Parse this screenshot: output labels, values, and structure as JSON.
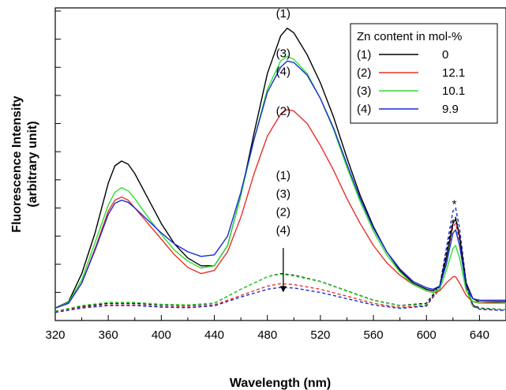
{
  "chart_data": {
    "type": "line",
    "xlabel": "Wavelength (nm)",
    "ylabel_line1": "Fluorescence Intensity",
    "ylabel_line2": "(arbitrary unit)",
    "xlim": [
      320,
      660
    ],
    "ylim": [
      0,
      1
    ],
    "x_ticks": [
      320,
      360,
      400,
      440,
      480,
      520,
      560,
      600,
      640
    ],
    "y_ticks_unlabeled": true,
    "grid": false,
    "legend": {
      "position": "top-right",
      "title": "Zn content in mol-%",
      "entries": [
        {
          "label": "(1)",
          "value": "0",
          "color": "#000000"
        },
        {
          "label": "(2)",
          "value": "12.1",
          "color": "#e8302a"
        },
        {
          "label": "(3)",
          "value": "10.1",
          "color": "#2ee02e"
        },
        {
          "label": "(4)",
          "value": "9.9",
          "color": "#1a2ad8"
        }
      ]
    },
    "annotations": {
      "solid": [
        {
          "text": "(1)",
          "x": 492,
          "y": 0.97
        },
        {
          "text": "(3)",
          "x": 492,
          "y": 0.842
        },
        {
          "text": "(4)",
          "x": 492,
          "y": 0.784
        },
        {
          "text": "(2)",
          "x": 492,
          "y": 0.658
        }
      ],
      "dashed": [
        {
          "text": "(1)",
          "x": 492,
          "y": 0.452
        },
        {
          "text": "(3)",
          "x": 492,
          "y": 0.393
        },
        {
          "text": "(2)",
          "x": 492,
          "y": 0.335
        },
        {
          "text": "(4)",
          "x": 492,
          "y": 0.276
        }
      ],
      "arrow": {
        "x": 492,
        "y_from": 0.232,
        "y_to": 0.09
      },
      "star": {
        "text": "*",
        "x": 621,
        "y": 0.36
      }
    },
    "series": [
      {
        "name": "(1)",
        "style": "solid",
        "color": "#000000",
        "points": [
          [
            320,
            0.04
          ],
          [
            330,
            0.06
          ],
          [
            340,
            0.15
          ],
          [
            350,
            0.28
          ],
          [
            360,
            0.44
          ],
          [
            365,
            0.495
          ],
          [
            370,
            0.51
          ],
          [
            375,
            0.5
          ],
          [
            380,
            0.47
          ],
          [
            390,
            0.39
          ],
          [
            400,
            0.31
          ],
          [
            410,
            0.245
          ],
          [
            420,
            0.2
          ],
          [
            430,
            0.175
          ],
          [
            440,
            0.175
          ],
          [
            450,
            0.24
          ],
          [
            460,
            0.4
          ],
          [
            470,
            0.6
          ],
          [
            480,
            0.79
          ],
          [
            490,
            0.91
          ],
          [
            495,
            0.935
          ],
          [
            500,
            0.92
          ],
          [
            510,
            0.85
          ],
          [
            520,
            0.76
          ],
          [
            530,
            0.65
          ],
          [
            540,
            0.52
          ],
          [
            550,
            0.4
          ],
          [
            560,
            0.3
          ],
          [
            570,
            0.22
          ],
          [
            580,
            0.16
          ],
          [
            590,
            0.12
          ],
          [
            600,
            0.1
          ],
          [
            605,
            0.095
          ],
          [
            610,
            0.11
          ],
          [
            615,
            0.2
          ],
          [
            620,
            0.31
          ],
          [
            622,
            0.325
          ],
          [
            625,
            0.27
          ],
          [
            630,
            0.12
          ],
          [
            635,
            0.07
          ],
          [
            640,
            0.06
          ],
          [
            660,
            0.06
          ]
        ]
      },
      {
        "name": "(2)",
        "style": "solid",
        "color": "#e8302a",
        "points": [
          [
            320,
            0.04
          ],
          [
            330,
            0.055
          ],
          [
            340,
            0.12
          ],
          [
            350,
            0.23
          ],
          [
            360,
            0.35
          ],
          [
            365,
            0.385
          ],
          [
            370,
            0.395
          ],
          [
            375,
            0.385
          ],
          [
            380,
            0.36
          ],
          [
            390,
            0.31
          ],
          [
            400,
            0.26
          ],
          [
            410,
            0.21
          ],
          [
            420,
            0.17
          ],
          [
            430,
            0.15
          ],
          [
            440,
            0.16
          ],
          [
            450,
            0.22
          ],
          [
            460,
            0.33
          ],
          [
            470,
            0.47
          ],
          [
            480,
            0.59
          ],
          [
            490,
            0.66
          ],
          [
            495,
            0.675
          ],
          [
            500,
            0.67
          ],
          [
            510,
            0.63
          ],
          [
            520,
            0.56
          ],
          [
            530,
            0.48
          ],
          [
            540,
            0.39
          ],
          [
            550,
            0.31
          ],
          [
            560,
            0.24
          ],
          [
            570,
            0.185
          ],
          [
            580,
            0.145
          ],
          [
            590,
            0.115
          ],
          [
            600,
            0.095
          ],
          [
            605,
            0.09
          ],
          [
            610,
            0.095
          ],
          [
            615,
            0.12
          ],
          [
            620,
            0.14
          ],
          [
            622,
            0.14
          ],
          [
            625,
            0.12
          ],
          [
            630,
            0.08
          ],
          [
            635,
            0.06
          ],
          [
            640,
            0.06
          ],
          [
            660,
            0.055
          ]
        ]
      },
      {
        "name": "(3)",
        "style": "solid",
        "color": "#2ee02e",
        "points": [
          [
            320,
            0.04
          ],
          [
            330,
            0.058
          ],
          [
            340,
            0.13
          ],
          [
            350,
            0.25
          ],
          [
            360,
            0.37
          ],
          [
            365,
            0.41
          ],
          [
            370,
            0.425
          ],
          [
            375,
            0.415
          ],
          [
            380,
            0.39
          ],
          [
            390,
            0.33
          ],
          [
            400,
            0.275
          ],
          [
            410,
            0.225
          ],
          [
            420,
            0.19
          ],
          [
            430,
            0.168
          ],
          [
            440,
            0.175
          ],
          [
            450,
            0.24
          ],
          [
            460,
            0.4
          ],
          [
            470,
            0.58
          ],
          [
            480,
            0.74
          ],
          [
            490,
            0.83
          ],
          [
            495,
            0.845
          ],
          [
            500,
            0.835
          ],
          [
            510,
            0.79
          ],
          [
            520,
            0.71
          ],
          [
            530,
            0.61
          ],
          [
            540,
            0.49
          ],
          [
            550,
            0.38
          ],
          [
            560,
            0.285
          ],
          [
            570,
            0.21
          ],
          [
            580,
            0.155
          ],
          [
            590,
            0.115
          ],
          [
            600,
            0.095
          ],
          [
            605,
            0.09
          ],
          [
            610,
            0.1
          ],
          [
            615,
            0.16
          ],
          [
            620,
            0.23
          ],
          [
            622,
            0.24
          ],
          [
            625,
            0.2
          ],
          [
            630,
            0.095
          ],
          [
            635,
            0.06
          ],
          [
            640,
            0.055
          ],
          [
            660,
            0.055
          ]
        ]
      },
      {
        "name": "(4)",
        "style": "solid",
        "color": "#1a2ad8",
        "points": [
          [
            320,
            0.04
          ],
          [
            330,
            0.055
          ],
          [
            340,
            0.12
          ],
          [
            350,
            0.225
          ],
          [
            360,
            0.34
          ],
          [
            365,
            0.375
          ],
          [
            370,
            0.385
          ],
          [
            375,
            0.378
          ],
          [
            380,
            0.36
          ],
          [
            390,
            0.32
          ],
          [
            400,
            0.28
          ],
          [
            410,
            0.245
          ],
          [
            420,
            0.22
          ],
          [
            430,
            0.205
          ],
          [
            440,
            0.21
          ],
          [
            450,
            0.27
          ],
          [
            460,
            0.41
          ],
          [
            470,
            0.58
          ],
          [
            480,
            0.73
          ],
          [
            490,
            0.81
          ],
          [
            495,
            0.83
          ],
          [
            500,
            0.825
          ],
          [
            510,
            0.785
          ],
          [
            520,
            0.71
          ],
          [
            530,
            0.615
          ],
          [
            540,
            0.5
          ],
          [
            550,
            0.39
          ],
          [
            560,
            0.295
          ],
          [
            570,
            0.22
          ],
          [
            580,
            0.165
          ],
          [
            590,
            0.125
          ],
          [
            600,
            0.105
          ],
          [
            605,
            0.1
          ],
          [
            610,
            0.11
          ],
          [
            615,
            0.18
          ],
          [
            620,
            0.28
          ],
          [
            622,
            0.29
          ],
          [
            625,
            0.24
          ],
          [
            630,
            0.11
          ],
          [
            635,
            0.07
          ],
          [
            640,
            0.065
          ],
          [
            660,
            0.065
          ]
        ]
      },
      {
        "name": "(1)",
        "style": "dashed",
        "color": "#000000",
        "points": [
          [
            320,
            0.03
          ],
          [
            340,
            0.045
          ],
          [
            360,
            0.055
          ],
          [
            380,
            0.055
          ],
          [
            400,
            0.05
          ],
          [
            420,
            0.048
          ],
          [
            440,
            0.055
          ],
          [
            460,
            0.1
          ],
          [
            480,
            0.14
          ],
          [
            490,
            0.15
          ],
          [
            500,
            0.145
          ],
          [
            520,
            0.125
          ],
          [
            540,
            0.095
          ],
          [
            560,
            0.065
          ],
          [
            580,
            0.048
          ],
          [
            600,
            0.055
          ],
          [
            610,
            0.11
          ],
          [
            615,
            0.22
          ],
          [
            620,
            0.32
          ],
          [
            622,
            0.33
          ],
          [
            625,
            0.27
          ],
          [
            630,
            0.11
          ],
          [
            635,
            0.05
          ],
          [
            640,
            0.04
          ],
          [
            660,
            0.035
          ]
        ]
      },
      {
        "name": "(3)",
        "style": "dashed",
        "color": "#2ee02e",
        "points": [
          [
            320,
            0.03
          ],
          [
            340,
            0.048
          ],
          [
            360,
            0.058
          ],
          [
            380,
            0.058
          ],
          [
            400,
            0.052
          ],
          [
            420,
            0.05
          ],
          [
            440,
            0.056
          ],
          [
            460,
            0.1
          ],
          [
            480,
            0.14
          ],
          [
            490,
            0.148
          ],
          [
            500,
            0.143
          ],
          [
            520,
            0.124
          ],
          [
            540,
            0.094
          ],
          [
            560,
            0.064
          ],
          [
            580,
            0.047
          ],
          [
            600,
            0.052
          ],
          [
            610,
            0.1
          ],
          [
            615,
            0.19
          ],
          [
            620,
            0.28
          ],
          [
            622,
            0.29
          ],
          [
            625,
            0.24
          ],
          [
            630,
            0.1
          ],
          [
            635,
            0.045
          ],
          [
            640,
            0.038
          ],
          [
            660,
            0.035
          ]
        ]
      },
      {
        "name": "(2)",
        "style": "dashed",
        "color": "#e8302a",
        "points": [
          [
            320,
            0.028
          ],
          [
            340,
            0.042
          ],
          [
            360,
            0.05
          ],
          [
            380,
            0.05
          ],
          [
            400,
            0.045
          ],
          [
            420,
            0.043
          ],
          [
            440,
            0.05
          ],
          [
            460,
            0.08
          ],
          [
            480,
            0.11
          ],
          [
            490,
            0.118
          ],
          [
            500,
            0.115
          ],
          [
            520,
            0.1
          ],
          [
            540,
            0.078
          ],
          [
            560,
            0.055
          ],
          [
            580,
            0.042
          ],
          [
            600,
            0.048
          ],
          [
            610,
            0.1
          ],
          [
            615,
            0.2
          ],
          [
            620,
            0.3
          ],
          [
            622,
            0.31
          ],
          [
            625,
            0.255
          ],
          [
            630,
            0.1
          ],
          [
            635,
            0.045
          ],
          [
            640,
            0.036
          ],
          [
            660,
            0.032
          ]
        ]
      },
      {
        "name": "(4)",
        "style": "dashed",
        "color": "#1a2ad8",
        "points": [
          [
            320,
            0.026
          ],
          [
            340,
            0.04
          ],
          [
            360,
            0.048
          ],
          [
            380,
            0.048
          ],
          [
            400,
            0.043
          ],
          [
            420,
            0.041
          ],
          [
            440,
            0.047
          ],
          [
            460,
            0.075
          ],
          [
            480,
            0.1
          ],
          [
            490,
            0.106
          ],
          [
            500,
            0.104
          ],
          [
            520,
            0.09
          ],
          [
            540,
            0.07
          ],
          [
            560,
            0.05
          ],
          [
            580,
            0.039
          ],
          [
            600,
            0.046
          ],
          [
            610,
            0.11
          ],
          [
            615,
            0.23
          ],
          [
            620,
            0.35
          ],
          [
            622,
            0.36
          ],
          [
            625,
            0.295
          ],
          [
            630,
            0.12
          ],
          [
            635,
            0.05
          ],
          [
            640,
            0.036
          ],
          [
            660,
            0.032
          ]
        ]
      }
    ]
  }
}
